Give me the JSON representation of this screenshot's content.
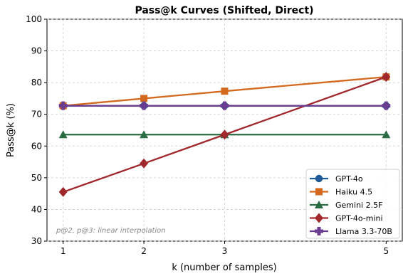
{
  "chart_data": {
    "type": "line",
    "title": "Pass@k Curves (Shifted, Direct)",
    "xlabel": "k (number of samples)",
    "ylabel": "Pass@k (%)",
    "x": [
      1,
      2,
      3,
      5
    ],
    "x_ticks": [
      "1",
      "2",
      "3",
      "5"
    ],
    "xlim": [
      0.8,
      5.2
    ],
    "ylim": [
      30,
      100
    ],
    "y_ticks": [
      "30",
      "40",
      "50",
      "60",
      "70",
      "80",
      "90",
      "100"
    ],
    "grid": true,
    "legend_position": "lower-right",
    "annotation": "p@2, p@3: linear interpolation",
    "series": [
      {
        "name": "GPT-4o",
        "color": "#1f5a96",
        "marker": "circle",
        "values": [
          72.7,
          72.7,
          72.7,
          72.7
        ]
      },
      {
        "name": "Haiku 4.5",
        "color": "#d2691e",
        "marker": "square",
        "values": [
          72.7,
          75.0,
          77.3,
          81.8
        ]
      },
      {
        "name": "Gemini 2.5F",
        "color": "#2a6b43",
        "marker": "triangle",
        "values": [
          63.6,
          63.6,
          63.6,
          63.6
        ]
      },
      {
        "name": "GPT-4o-mini",
        "color": "#a0282d",
        "marker": "diamond",
        "values": [
          45.5,
          54.5,
          63.6,
          81.8
        ]
      },
      {
        "name": "Llama 3.3-70B",
        "color": "#6a3d91",
        "marker": "plus",
        "values": [
          72.7,
          72.7,
          72.7,
          72.7
        ]
      }
    ]
  }
}
